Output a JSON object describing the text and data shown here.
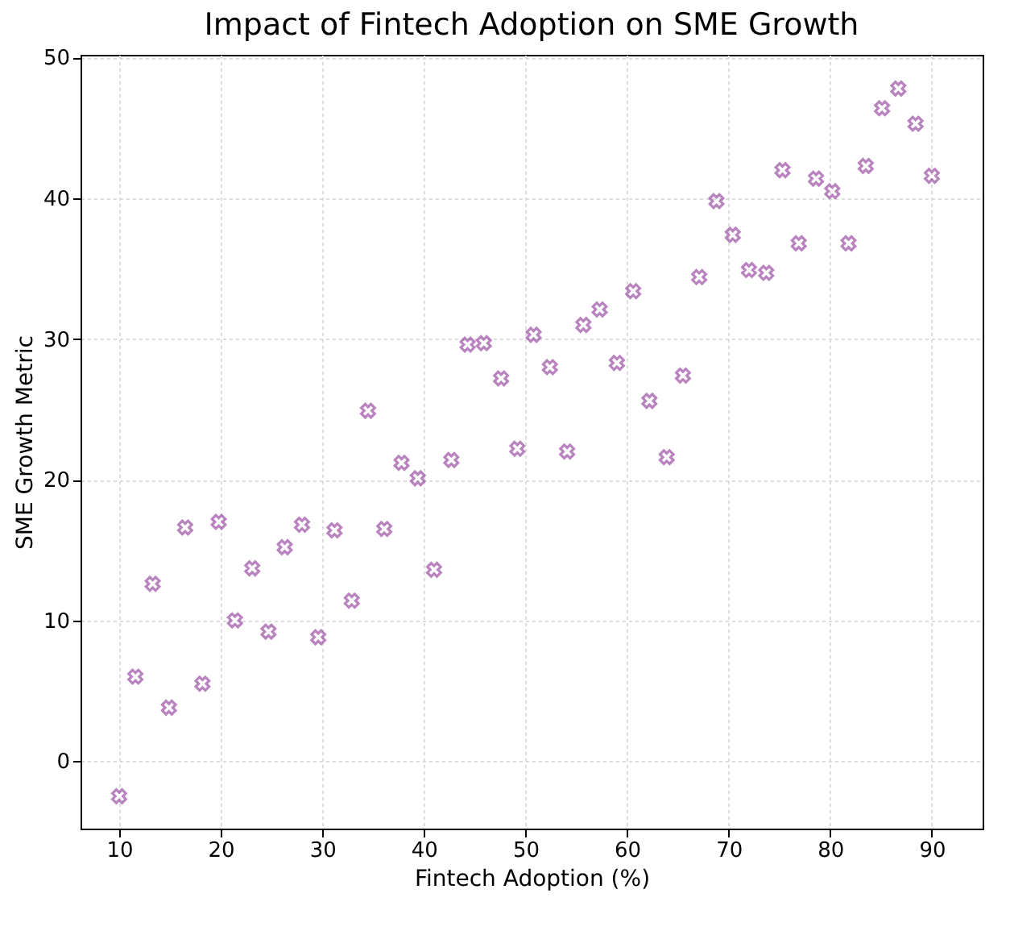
{
  "chart_data": {
    "type": "scatter",
    "title": "Impact of Fintech Adoption on SME Growth",
    "xlabel": "Fintech Adoption (%)",
    "ylabel": "SME Growth Metric",
    "x": [
      10,
      11.6,
      13.3,
      14.9,
      16.5,
      18.2,
      19.8,
      21.4,
      23.1,
      24.7,
      26.3,
      28.0,
      29.6,
      31.2,
      32.9,
      34.5,
      36.1,
      37.8,
      39.4,
      41.0,
      42.7,
      44.3,
      45.9,
      47.6,
      49.2,
      50.8,
      52.4,
      54.1,
      55.7,
      57.3,
      59.0,
      60.6,
      62.2,
      63.9,
      65.5,
      67.1,
      68.8,
      70.4,
      72.0,
      73.7,
      75.3,
      76.9,
      78.6,
      80.2,
      81.8,
      83.5,
      85.1,
      86.7,
      88.4,
      90.0
    ],
    "series": [
      {
        "color": "#9b4fa3",
        "values": [
          -2.5,
          6.0,
          12.6,
          3.8,
          16.6,
          5.5,
          17.0,
          10.0,
          13.7,
          9.2,
          15.2,
          16.8,
          8.8,
          16.4,
          11.4,
          24.9,
          16.5,
          21.2,
          20.1,
          13.6,
          21.4,
          29.6,
          29.7,
          27.2,
          22.2,
          30.3,
          28.0,
          22.0,
          31.0,
          32.1,
          28.3,
          33.4,
          25.6,
          21.6,
          27.4,
          34.4,
          39.8,
          37.4,
          34.9,
          34.7,
          42.0,
          36.8,
          41.4,
          40.5,
          36.8,
          42.3,
          46.4,
          47.8,
          45.3,
          41.6
        ]
      }
    ],
    "xlim": [
      6.2,
      95
    ],
    "ylim": [
      -4.8,
      50.2
    ],
    "xticks": [
      10,
      20,
      30,
      40,
      50,
      60,
      70,
      80,
      90
    ],
    "yticks": [
      0,
      10,
      20,
      30,
      40,
      50
    ],
    "grid": true,
    "marker": "cross"
  }
}
